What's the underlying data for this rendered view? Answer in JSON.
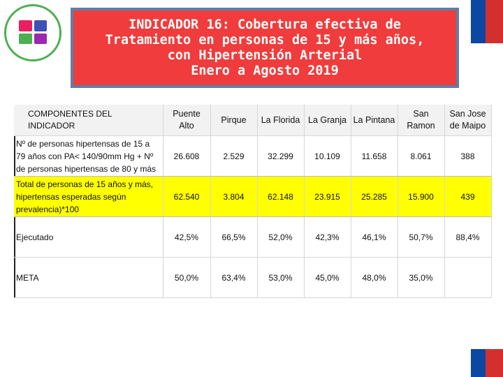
{
  "title": {
    "lines": [
      "INDICADOR 16: Cobertura efectiva de",
      "Tratamiento en personas de 15 y más años,",
      "con Hipertensión Arterial",
      "Enero a Agosto 2019"
    ]
  },
  "table": {
    "headers": [
      "COMPONENTES DEL INDICADOR",
      "Puente Alto",
      "Pirque",
      "La Florida",
      "La Granja",
      "La Pintana",
      "San Ramon",
      "San Jose de Maipo"
    ],
    "rows": [
      {
        "label": "Nº de personas hipertensas de 15 a 79 años con PA< 140/90mm Hg + Nº de personas hipertensas de 80 y más",
        "values": [
          "26.608",
          "2.529",
          "32.299",
          "10.109",
          "11.658",
          "8.061",
          "388"
        ]
      },
      {
        "label": "Total de personas de 15 años y más, hipertensas esperadas según prevalencia)*100",
        "values": [
          "62.540",
          "3.804",
          "62.148",
          "23.915",
          "25.285",
          "15.900",
          "439"
        ]
      },
      {
        "label": "Ejecutado",
        "values": [
          "42,5%",
          "66,5%",
          "52,0%",
          "42,3%",
          "46,1%",
          "50,7%",
          "88,4%"
        ]
      },
      {
        "label": "META",
        "values": [
          "50,0%",
          "63,4%",
          "53,0%",
          "45,0%",
          "48,0%",
          "35,0%",
          ""
        ]
      }
    ]
  },
  "colors": {
    "title_bg": "#f03c3c",
    "title_border": "#5d7fa6",
    "highlight_row": "#ffff00",
    "flag_blue": "#0d47a1",
    "flag_red": "#d32f2f"
  }
}
